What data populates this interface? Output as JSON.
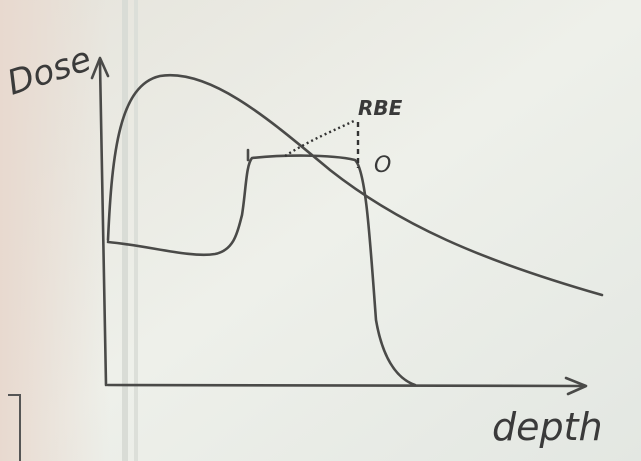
{
  "axes": {
    "y_label": "Dose",
    "x_label": "depth"
  },
  "annotations": [
    "RBE",
    "O"
  ]
}
